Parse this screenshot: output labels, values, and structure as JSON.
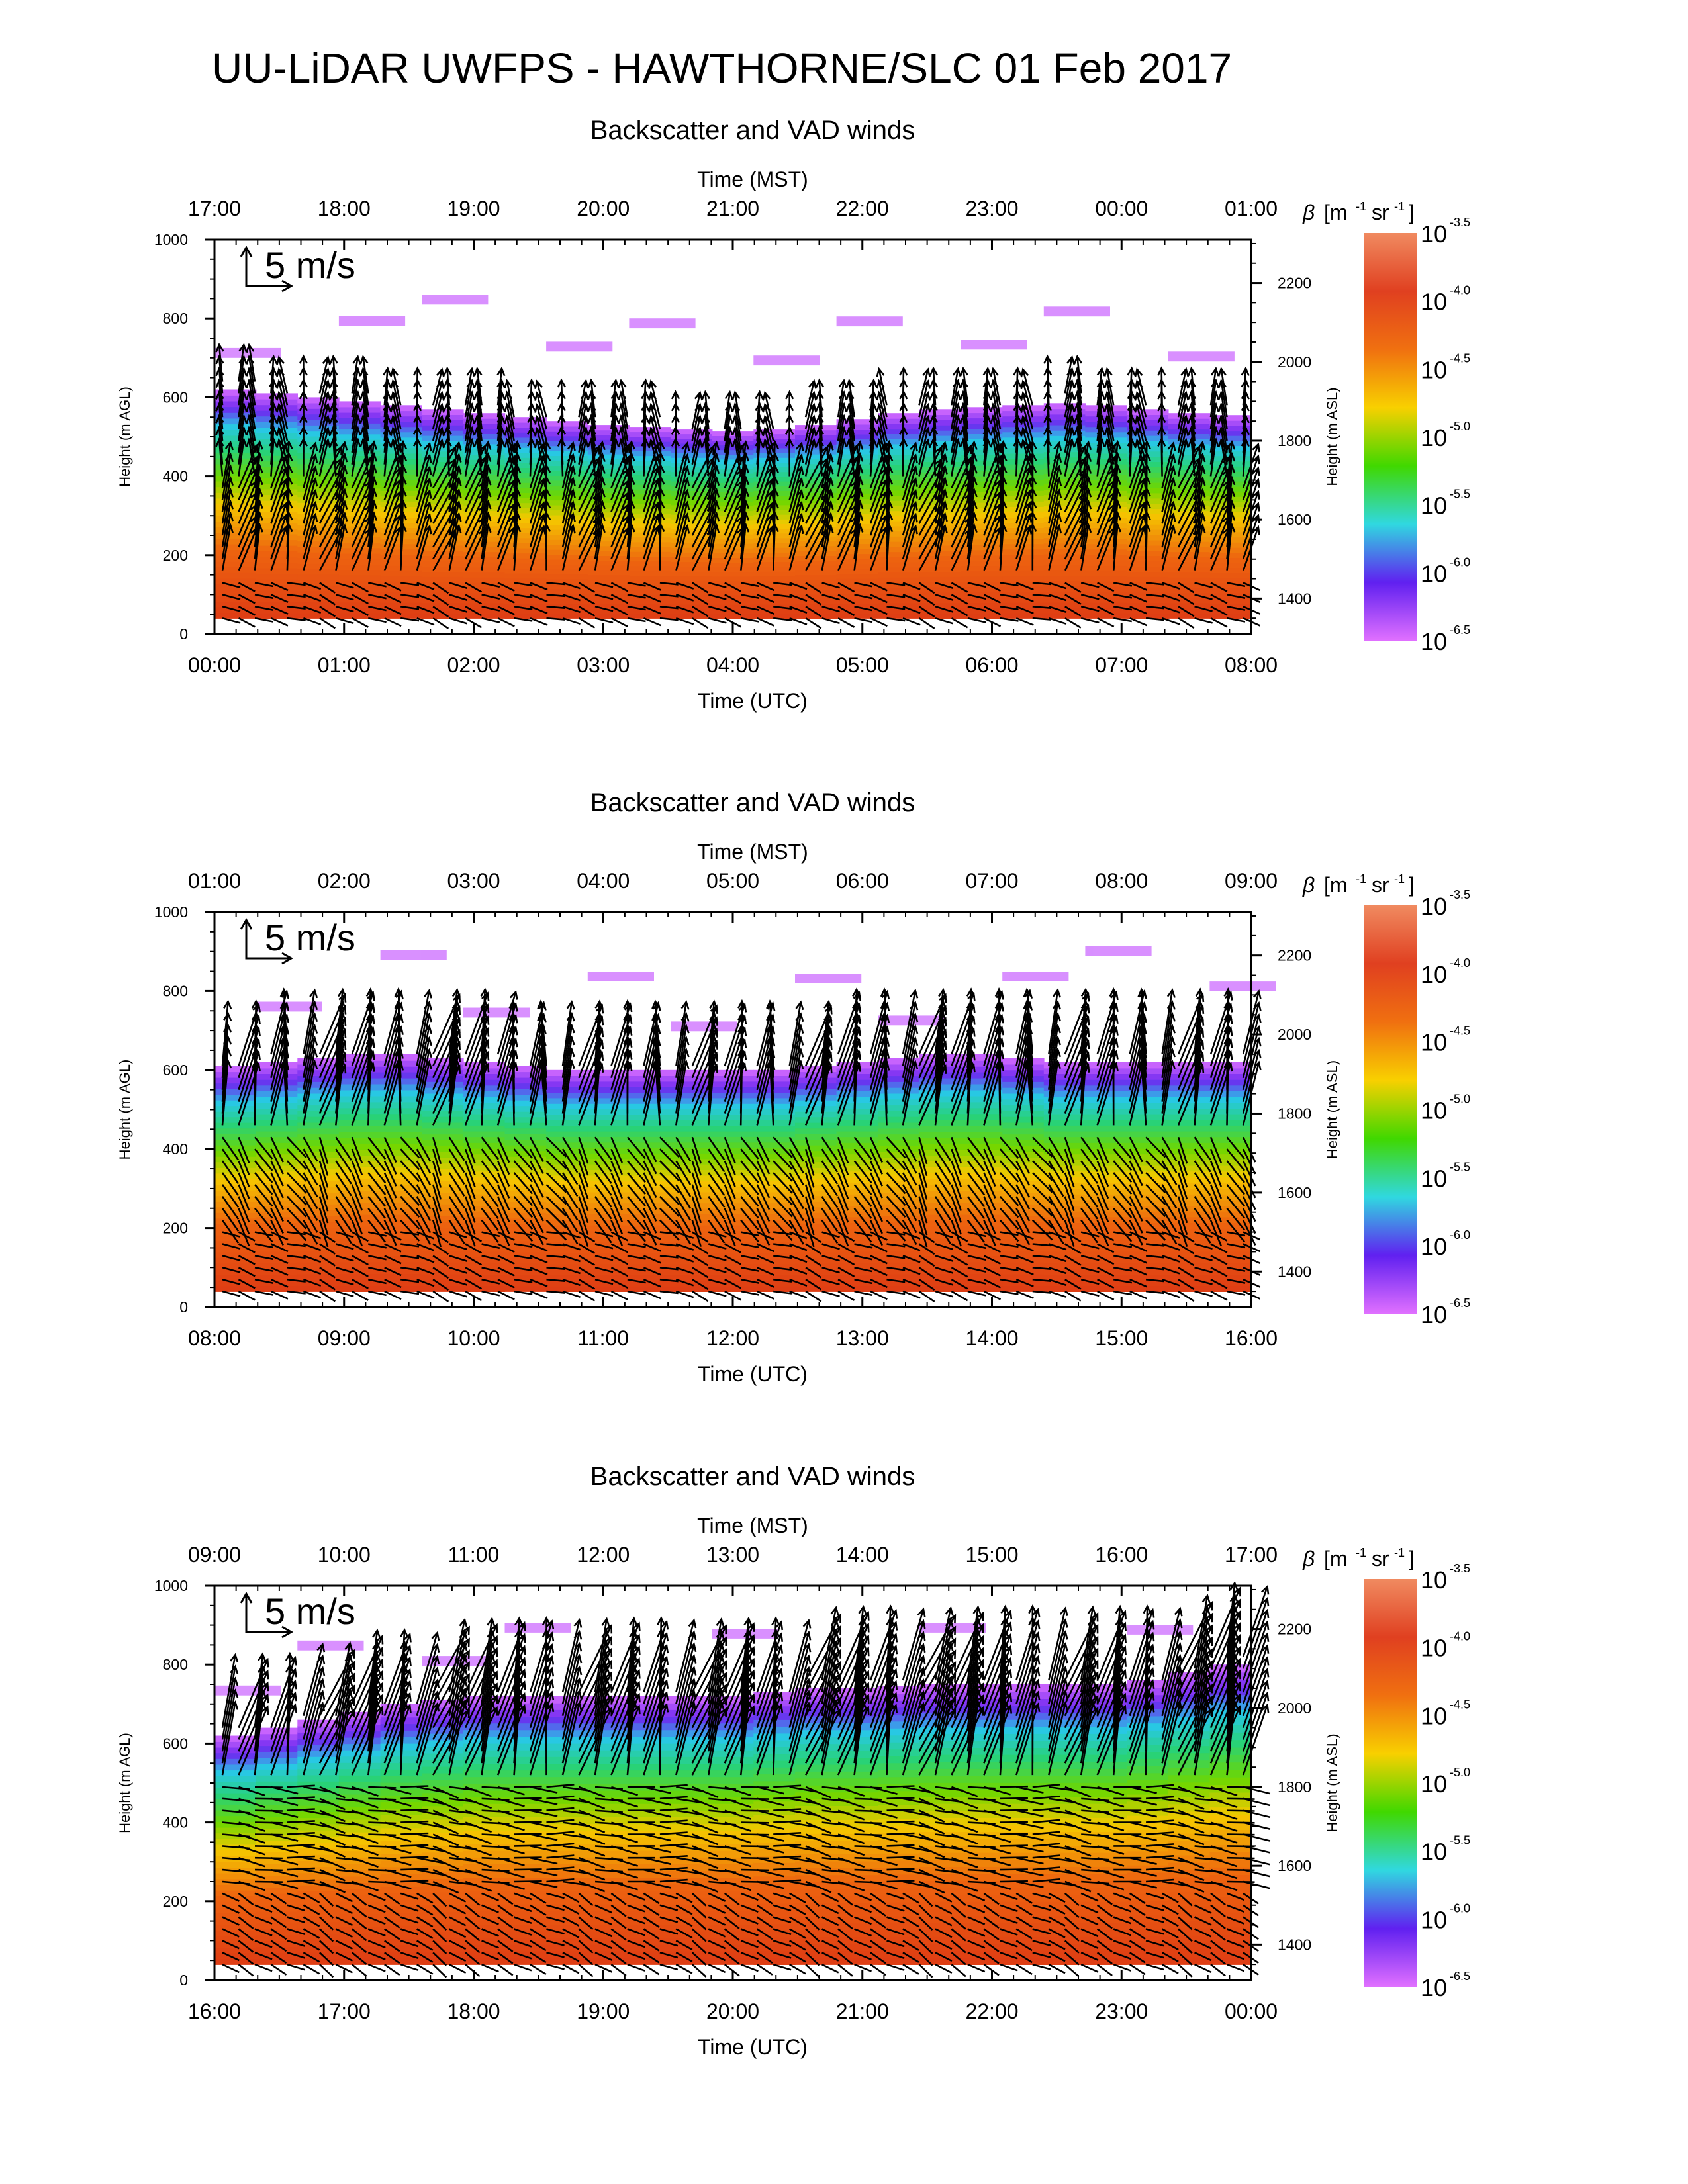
{
  "title": "UU-LiDAR UWFPS - HAWTHORNE/SLC 01 Feb 2017",
  "scale_label": "5 m/s",
  "colorbar": {
    "label_beta": "β",
    "label_units_main": "[m",
    "label_units_exp1": "-1",
    "label_units_mid": "sr",
    "label_units_exp2": "-1",
    "label_units_close": "]",
    "base": "10",
    "exponents": [
      "-3.5",
      "-4.0",
      "-4.5",
      "-5.0",
      "-5.5",
      "-6.0",
      "-6.5"
    ],
    "colors": [
      "#f08a60",
      "#e04020",
      "#f07010",
      "#f8d000",
      "#40d800",
      "#30d8e0",
      "#6020f0",
      "#e070ff"
    ]
  },
  "colors": {
    "wind_arrows": "#000000",
    "background": "#ffffff"
  },
  "chart_data": [
    {
      "type": "heatmap",
      "title": "Backscatter and VAD winds",
      "top_xlabel": "Time (MST)",
      "top_ticks": [
        "17:00",
        "18:00",
        "19:00",
        "20:00",
        "21:00",
        "22:00",
        "23:00",
        "00:00",
        "01:00"
      ],
      "xlabel": "Time (UTC)",
      "x_ticks": [
        "00:00",
        "01:00",
        "02:00",
        "03:00",
        "04:00",
        "05:00",
        "06:00",
        "07:00",
        "08:00"
      ],
      "ylabel": "Height (m AGL)",
      "y_ticks": [
        "0",
        "200",
        "400",
        "600",
        "800",
        "1000"
      ],
      "ylim": [
        0,
        1000
      ],
      "y2label": "Height (m ASL)",
      "y2_ticks": [
        "1400",
        "1600",
        "1800",
        "2000",
        "2200"
      ],
      "y2lim": [
        1310,
        2310
      ],
      "aerosol_top_m": [
        620,
        610,
        600,
        590,
        580,
        570,
        560,
        550,
        540,
        530,
        525,
        520,
        515,
        520,
        530,
        545,
        560,
        570,
        575,
        580,
        585,
        580,
        570,
        560,
        555
      ],
      "transition_m": [
        470,
        455,
        440,
        430,
        420,
        415,
        410,
        405,
        400,
        395,
        380,
        360,
        340,
        360,
        380,
        395,
        405,
        410,
        400,
        395,
        405,
        410,
        420,
        430,
        425
      ],
      "wind_bands": [
        {
          "from_m": 0,
          "to_m": 150,
          "speed_ms": 2,
          "dir_to_deg": 110
        },
        {
          "from_m": 150,
          "to_m": 400,
          "speed_ms": 5,
          "dir_to_deg": 15
        },
        {
          "from_m": 400,
          "to_m": 650,
          "speed_ms": 4,
          "dir_to_deg": 0
        }
      ]
    },
    {
      "type": "heatmap",
      "title": "Backscatter and VAD winds",
      "top_xlabel": "Time (MST)",
      "top_ticks": [
        "01:00",
        "02:00",
        "03:00",
        "04:00",
        "05:00",
        "06:00",
        "07:00",
        "08:00",
        "09:00"
      ],
      "xlabel": "Time (UTC)",
      "x_ticks": [
        "08:00",
        "09:00",
        "10:00",
        "11:00",
        "12:00",
        "13:00",
        "14:00",
        "15:00",
        "16:00"
      ],
      "ylabel": "Height (m AGL)",
      "y_ticks": [
        "0",
        "200",
        "400",
        "600",
        "800",
        "1000"
      ],
      "ylim": [
        0,
        1000
      ],
      "y2label": "Height (m ASL)",
      "y2_ticks": [
        "1400",
        "1600",
        "1800",
        "2000",
        "2200"
      ],
      "y2lim": [
        1310,
        2310
      ],
      "aerosol_top_m": [
        610,
        620,
        630,
        640,
        640,
        630,
        620,
        610,
        600,
        600,
        600,
        600,
        600,
        600,
        610,
        620,
        630,
        640,
        640,
        630,
        620,
        620,
        620,
        620,
        620
      ],
      "transition_m": [
        480,
        470,
        470,
        480,
        490,
        500,
        510,
        510,
        505,
        500,
        500,
        495,
        495,
        495,
        495,
        490,
        490,
        490,
        500,
        500,
        500,
        495,
        495,
        495,
        490
      ],
      "wind_bands": [
        {
          "from_m": 0,
          "to_m": 200,
          "speed_ms": 2,
          "dir_to_deg": 110
        },
        {
          "from_m": 200,
          "to_m": 450,
          "speed_ms": 3,
          "dir_to_deg": 150
        },
        {
          "from_m": 450,
          "to_m": 680,
          "speed_ms": 7,
          "dir_to_deg": 10
        }
      ]
    },
    {
      "type": "heatmap",
      "title": "Backscatter and VAD winds",
      "top_xlabel": "Time (MST)",
      "top_ticks": [
        "09:00",
        "10:00",
        "11:00",
        "12:00",
        "13:00",
        "14:00",
        "15:00",
        "16:00",
        "17:00"
      ],
      "xlabel": "Time (UTC)",
      "x_ticks": [
        "16:00",
        "17:00",
        "18:00",
        "19:00",
        "20:00",
        "21:00",
        "22:00",
        "23:00",
        "00:00"
      ],
      "ylabel": "Height (m AGL)",
      "y_ticks": [
        "0",
        "200",
        "400",
        "600",
        "800",
        "1000"
      ],
      "ylim": [
        0,
        1000
      ],
      "y2label": "Height (m ASL)",
      "y2_ticks": [
        "1400",
        "1600",
        "1800",
        "2000",
        "2200"
      ],
      "y2lim": [
        1310,
        2310
      ],
      "aerosol_top_m": [
        620,
        640,
        660,
        680,
        700,
        710,
        720,
        720,
        720,
        720,
        720,
        720,
        720,
        730,
        740,
        740,
        745,
        750,
        750,
        750,
        750,
        750,
        760,
        780,
        800
      ],
      "transition_m": [
        440,
        450,
        460,
        470,
        480,
        490,
        500,
        505,
        510,
        515,
        520,
        520,
        530,
        540,
        550,
        555,
        560,
        560,
        560,
        560,
        555,
        555,
        560,
        570,
        580
      ],
      "wind_bands": [
        {
          "from_m": 0,
          "to_m": 250,
          "speed_ms": 2,
          "dir_to_deg": 120
        },
        {
          "from_m": 250,
          "to_m": 500,
          "speed_ms": 3,
          "dir_to_deg": 100
        },
        {
          "from_m": 500,
          "to_m": 780,
          "speed_ms": 8,
          "dir_to_deg": 15
        }
      ]
    }
  ]
}
